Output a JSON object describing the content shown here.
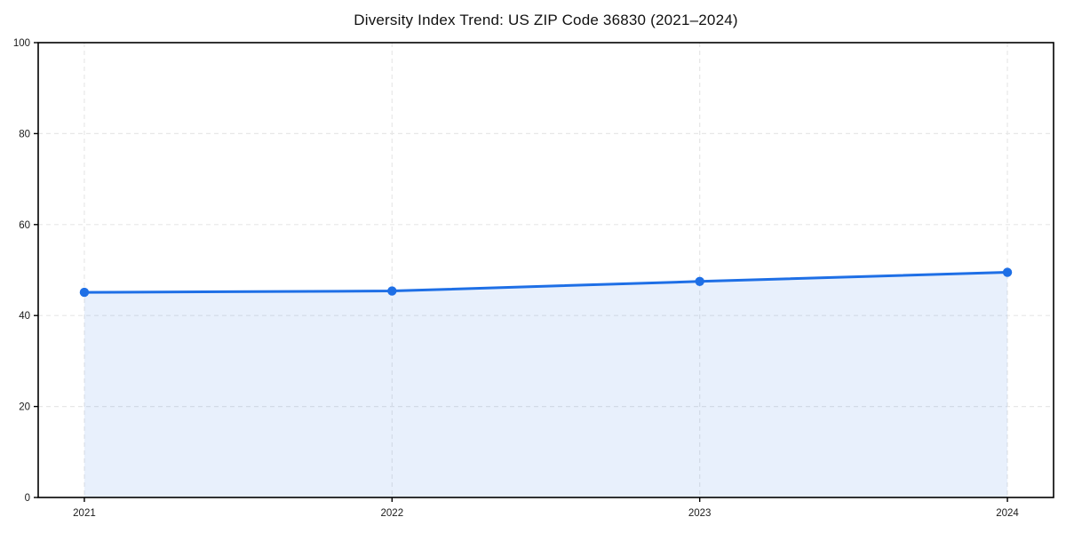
{
  "chart_data": {
    "type": "line",
    "title": "Diversity Index Trend: US ZIP Code 36830 (2021–2024)",
    "x": [
      2021,
      2022,
      2023,
      2024
    ],
    "x_tick_labels": [
      "2021",
      "2022",
      "2023",
      "2024"
    ],
    "series": [
      {
        "name": "Diversity Index",
        "values": [
          45.1,
          45.4,
          47.5,
          49.5
        ],
        "marker": "circle",
        "area_fill": true
      }
    ],
    "xlabel": "",
    "ylabel": "",
    "xlim": [
      2020.85,
      2024.15
    ],
    "ylim": [
      0,
      100
    ],
    "y_ticks": [
      0,
      20,
      40,
      60,
      80,
      100
    ],
    "grid": "dashed",
    "legend": "none",
    "colors": {
      "line": "#1e6fe6",
      "marker": "#1e6fe6",
      "area_fill": "rgba(30, 111, 230, 0.10)",
      "grid": "#e7e7e7",
      "spine": "#000000",
      "tick_label": "#1a1a1a",
      "background": "#ffffff"
    }
  }
}
